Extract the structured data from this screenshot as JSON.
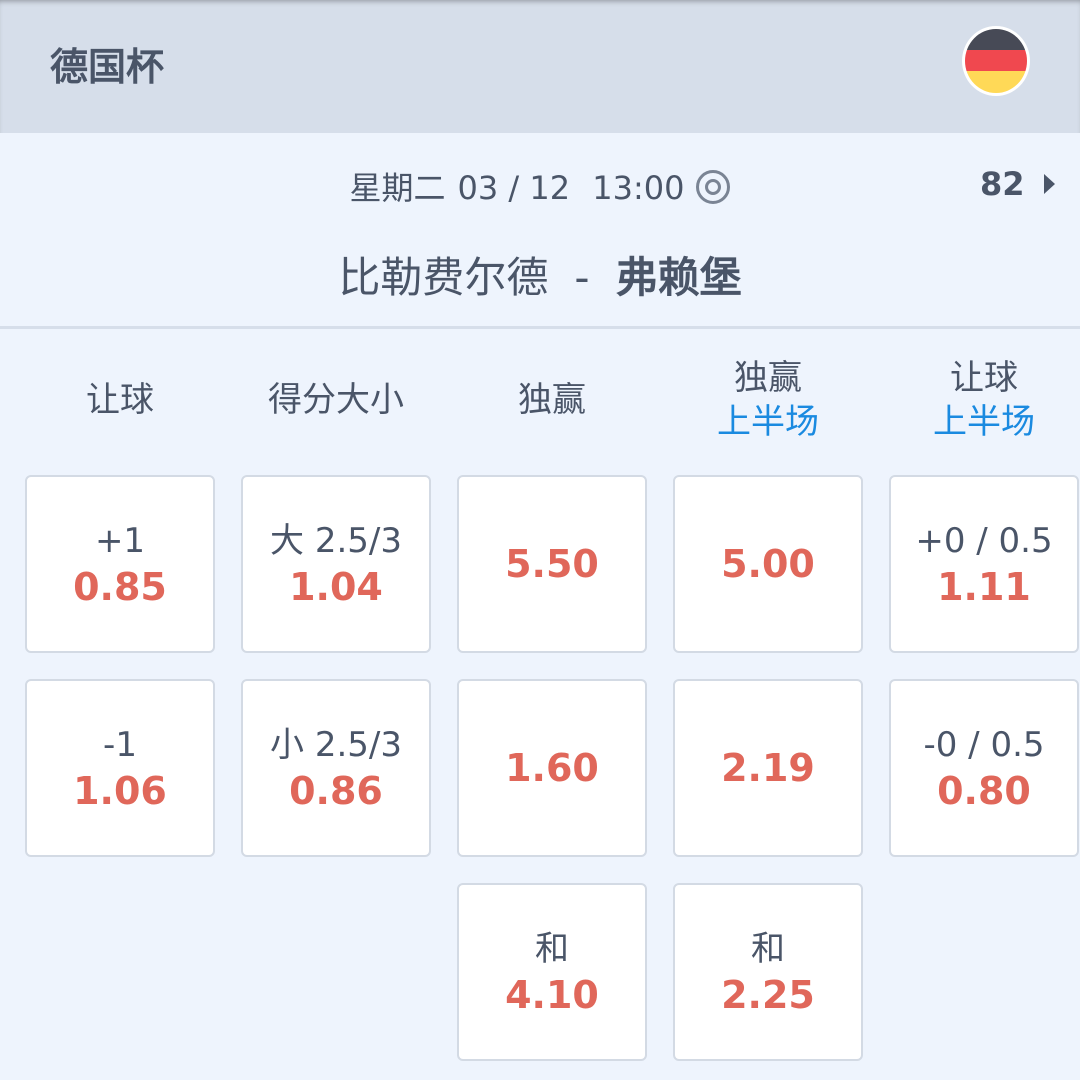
{
  "header": {
    "league": "德国杯",
    "flag_icon": "germany-flag-icon"
  },
  "match": {
    "day": "星期二",
    "date": "03 / 12",
    "time": "13:00",
    "markets_count": "82",
    "home": "比勒费尔德",
    "separator": "-",
    "away": "弗赖堡"
  },
  "colors": {
    "odds": "#e0675a",
    "accent": "#1a8ae0",
    "text": "#4a5568"
  },
  "columns": [
    {
      "title": "让球",
      "sub": "",
      "cards": [
        {
          "line": "+1",
          "odd": "0.85"
        },
        {
          "line": "-1",
          "odd": "1.06"
        }
      ]
    },
    {
      "title": "得分大小",
      "sub": "",
      "cards": [
        {
          "line": "大 2.5/3",
          "odd": "1.04"
        },
        {
          "line": "小 2.5/3",
          "odd": "0.86"
        }
      ]
    },
    {
      "title": "独赢",
      "sub": "",
      "cards": [
        {
          "line": "",
          "odd": "5.50"
        },
        {
          "line": "",
          "odd": "1.60"
        },
        {
          "line": "和",
          "odd": "4.10"
        }
      ]
    },
    {
      "title": "独赢",
      "sub": "上半场",
      "cards": [
        {
          "line": "",
          "odd": "5.00"
        },
        {
          "line": "",
          "odd": "2.19"
        },
        {
          "line": "和",
          "odd": "2.25"
        }
      ]
    },
    {
      "title": "让球",
      "sub": "上半场",
      "cards": [
        {
          "line": "+0 / 0.5",
          "odd": "1.11"
        },
        {
          "line": "-0 / 0.5",
          "odd": "0.80"
        }
      ]
    }
  ]
}
